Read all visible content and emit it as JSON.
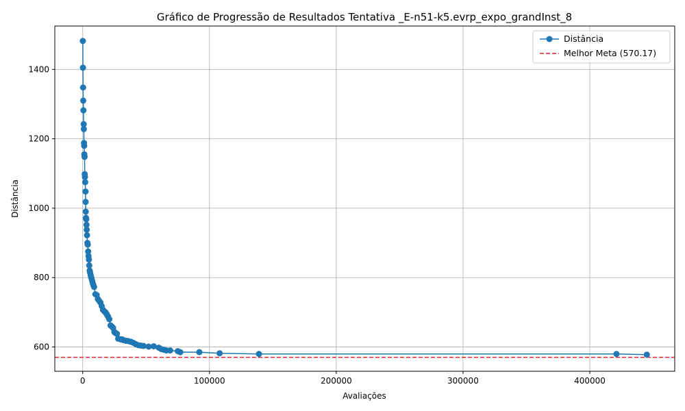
{
  "chart_data": {
    "type": "line",
    "title": "Gráfico de Progressão de Resultados Tentativa _E-n51-k5.evrp_expo_grandInst_8",
    "xlabel": "Avaliações",
    "ylabel": "Distância",
    "xlim": [
      -22000,
      467000
    ],
    "ylim": [
      530,
      1525
    ],
    "xticks": [
      0,
      100000,
      200000,
      300000,
      400000
    ],
    "yticks": [
      600,
      800,
      1000,
      1200,
      1400
    ],
    "grid": true,
    "legend_position": "top-right",
    "series": [
      {
        "name": "Distância",
        "color": "#1f77b4",
        "marker": "circle",
        "x": [
          100,
          200,
          300,
          400,
          600,
          800,
          900,
          1000,
          1200,
          1300,
          1500,
          1600,
          1800,
          2000,
          2200,
          2300,
          2400,
          2600,
          2800,
          3000,
          3200,
          3400,
          3700,
          4000,
          4300,
          4600,
          4900,
          5200,
          5500,
          5800,
          6200,
          6600,
          7000,
          7500,
          8000,
          8500,
          9000,
          10000,
          11000,
          12000,
          13000,
          14000,
          15000,
          16000,
          17000,
          18000,
          18500,
          19000,
          20000,
          21000,
          22000,
          23000,
          24000,
          25000,
          26000,
          27000,
          28000,
          30000,
          31000,
          32000,
          34000,
          36000,
          38000,
          40000,
          42000,
          44000,
          46000,
          48000,
          52000,
          56000,
          60000,
          62000,
          64000,
          66000,
          69000,
          75000,
          77000,
          92000,
          108000,
          139000,
          421000,
          445000
        ],
        "y": [
          1482,
          1405,
          1348,
          1310,
          1282,
          1242,
          1228,
          1188,
          1180,
          1155,
          1148,
          1098,
          1090,
          1075,
          1048,
          1018,
          990,
          972,
          968,
          952,
          938,
          922,
          900,
          895,
          875,
          862,
          852,
          835,
          820,
          815,
          808,
          802,
          797,
          790,
          783,
          778,
          773,
          752,
          750,
          738,
          733,
          728,
          718,
          707,
          703,
          700,
          697,
          694,
          688,
          680,
          662,
          659,
          655,
          643,
          640,
          638,
          624,
          622,
          622,
          620,
          618,
          617,
          615,
          612,
          608,
          605,
          604,
          603,
          601,
          602,
          598,
          594,
          592,
          590,
          590,
          588,
          585,
          585,
          582,
          580,
          580,
          578
        ]
      }
    ],
    "reference_line": {
      "name": "Melhor Meta (570.17)",
      "y": 570.17,
      "color": "#d62728",
      "style": "dashed"
    }
  }
}
